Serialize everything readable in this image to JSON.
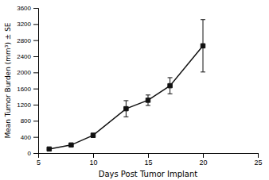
{
  "chart_data": {
    "type": "line",
    "x": [
      6,
      8,
      10,
      13,
      15,
      17,
      20
    ],
    "values": [
      100,
      200,
      440,
      1100,
      1310,
      1670,
      2660
    ],
    "errors": [
      20,
      30,
      50,
      200,
      130,
      200,
      650
    ],
    "color": "#111111",
    "marker": "square",
    "xlabel": "Days Post Tumor Implant",
    "ylabel": "Mean Tumor Burden (mm³) ± SE",
    "xlim": [
      5,
      25
    ],
    "ylim": [
      0,
      3600
    ],
    "xticks": [
      5,
      10,
      15,
      20,
      25
    ],
    "yticks": [
      0,
      400,
      800,
      1200,
      1600,
      2000,
      2400,
      2800,
      3200,
      3600
    ],
    "grid": false
  }
}
